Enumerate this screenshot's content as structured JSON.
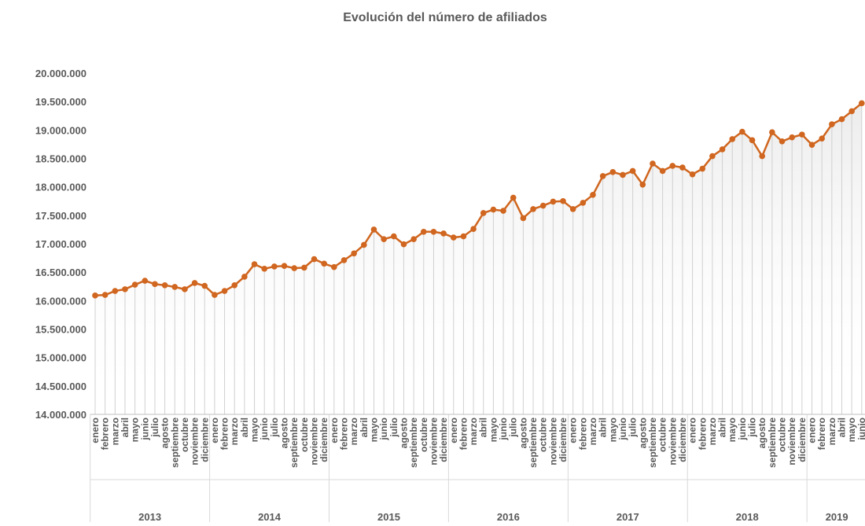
{
  "chart_data": {
    "type": "line",
    "title": "Evolución del número de afiliados",
    "categories": [
      [
        "2013",
        "enero"
      ],
      [
        "2013",
        "febrero"
      ],
      [
        "2013",
        "marzo"
      ],
      [
        "2013",
        "abril"
      ],
      [
        "2013",
        "mayo"
      ],
      [
        "2013",
        "junio"
      ],
      [
        "2013",
        "julio"
      ],
      [
        "2013",
        "agosto"
      ],
      [
        "2013",
        "septiembre"
      ],
      [
        "2013",
        "octubre"
      ],
      [
        "2013",
        "noviembre"
      ],
      [
        "2013",
        "diciembre"
      ],
      [
        "2014",
        "enero"
      ],
      [
        "2014",
        "febrero"
      ],
      [
        "2014",
        "marzo"
      ],
      [
        "2014",
        "abril"
      ],
      [
        "2014",
        "mayo"
      ],
      [
        "2014",
        "junio"
      ],
      [
        "2014",
        "julio"
      ],
      [
        "2014",
        "agosto"
      ],
      [
        "2014",
        "septiembre"
      ],
      [
        "2014",
        "octubre"
      ],
      [
        "2014",
        "noviembre"
      ],
      [
        "2014",
        "diciembre"
      ],
      [
        "2015",
        "enero"
      ],
      [
        "2015",
        "febrero"
      ],
      [
        "2015",
        "marzo"
      ],
      [
        "2015",
        "abril"
      ],
      [
        "2015",
        "mayo"
      ],
      [
        "2015",
        "junio"
      ],
      [
        "2015",
        "julio"
      ],
      [
        "2015",
        "agosto"
      ],
      [
        "2015",
        "septiembre"
      ],
      [
        "2015",
        "octubre"
      ],
      [
        "2015",
        "noviembre"
      ],
      [
        "2015",
        "diciembre"
      ],
      [
        "2016",
        "enero"
      ],
      [
        "2016",
        "febrero"
      ],
      [
        "2016",
        "marzo"
      ],
      [
        "2016",
        "abril"
      ],
      [
        "2016",
        "mayo"
      ],
      [
        "2016",
        "junio"
      ],
      [
        "2016",
        "julio"
      ],
      [
        "2016",
        "agosto"
      ],
      [
        "2016",
        "septiembre"
      ],
      [
        "2016",
        "octubre"
      ],
      [
        "2016",
        "noviembre"
      ],
      [
        "2016",
        "diciembre"
      ],
      [
        "2017",
        "enero"
      ],
      [
        "2017",
        "febrero"
      ],
      [
        "2017",
        "marzo"
      ],
      [
        "2017",
        "abril"
      ],
      [
        "2017",
        "mayo"
      ],
      [
        "2017",
        "junio"
      ],
      [
        "2017",
        "julio"
      ],
      [
        "2017",
        "agosto"
      ],
      [
        "2017",
        "septiembre"
      ],
      [
        "2017",
        "octubre"
      ],
      [
        "2017",
        "noviembre"
      ],
      [
        "2017",
        "diciembre"
      ],
      [
        "2018",
        "enero"
      ],
      [
        "2018",
        "febrero"
      ],
      [
        "2018",
        "marzo"
      ],
      [
        "2018",
        "abril"
      ],
      [
        "2018",
        "mayo"
      ],
      [
        "2018",
        "junio"
      ],
      [
        "2018",
        "julio"
      ],
      [
        "2018",
        "agosto"
      ],
      [
        "2018",
        "septiembre"
      ],
      [
        "2018",
        "octubre"
      ],
      [
        "2018",
        "noviembre"
      ],
      [
        "2018",
        "diciembre"
      ],
      [
        "2019",
        "enero"
      ],
      [
        "2019",
        "febrero"
      ],
      [
        "2019",
        "marzo"
      ],
      [
        "2019",
        "abril"
      ],
      [
        "2019",
        "mayo"
      ],
      [
        "2019",
        "junio"
      ]
    ],
    "series": [
      {
        "color": "#d0661f",
        "values": [
          16090000,
          16100000,
          16170000,
          16200000,
          16280000,
          16350000,
          16290000,
          16270000,
          16240000,
          16200000,
          16310000,
          16260000,
          16100000,
          16170000,
          16270000,
          16420000,
          16640000,
          16560000,
          16600000,
          16610000,
          16570000,
          16580000,
          16730000,
          16650000,
          16590000,
          16710000,
          16830000,
          16980000,
          17250000,
          17080000,
          17130000,
          16990000,
          17080000,
          17210000,
          17210000,
          17180000,
          17110000,
          17130000,
          17260000,
          17540000,
          17600000,
          17580000,
          17810000,
          17450000,
          17610000,
          17670000,
          17740000,
          17750000,
          17610000,
          17720000,
          17860000,
          18190000,
          18260000,
          18210000,
          18280000,
          18040000,
          18410000,
          18280000,
          18370000,
          18340000,
          18220000,
          18320000,
          18540000,
          18660000,
          18840000,
          18970000,
          18820000,
          18540000,
          18960000,
          18800000,
          18870000,
          18920000,
          18740000,
          18850000,
          19100000,
          19190000,
          19330000,
          19470000
        ]
      }
    ],
    "ylim": [
      14000000,
      20000000
    ],
    "yticks": [
      {
        "value": 14000000,
        "label": "14.000.000"
      },
      {
        "value": 14500000,
        "label": "14.500.000"
      },
      {
        "value": 15000000,
        "label": "15.000.000"
      },
      {
        "value": 15500000,
        "label": "15.500.000"
      },
      {
        "value": 16000000,
        "label": "16.000.000"
      },
      {
        "value": 16500000,
        "label": "16.500.000"
      },
      {
        "value": 17000000,
        "label": "17.000.000"
      },
      {
        "value": 17500000,
        "label": "17.500.000"
      },
      {
        "value": 18000000,
        "label": "18.000.000"
      },
      {
        "value": 18500000,
        "label": "18.500.000"
      },
      {
        "value": 19000000,
        "label": "19.000.000"
      },
      {
        "value": 19500000,
        "label": "19.500.000"
      },
      {
        "value": 20000000,
        "label": "20.000.000"
      }
    ]
  }
}
